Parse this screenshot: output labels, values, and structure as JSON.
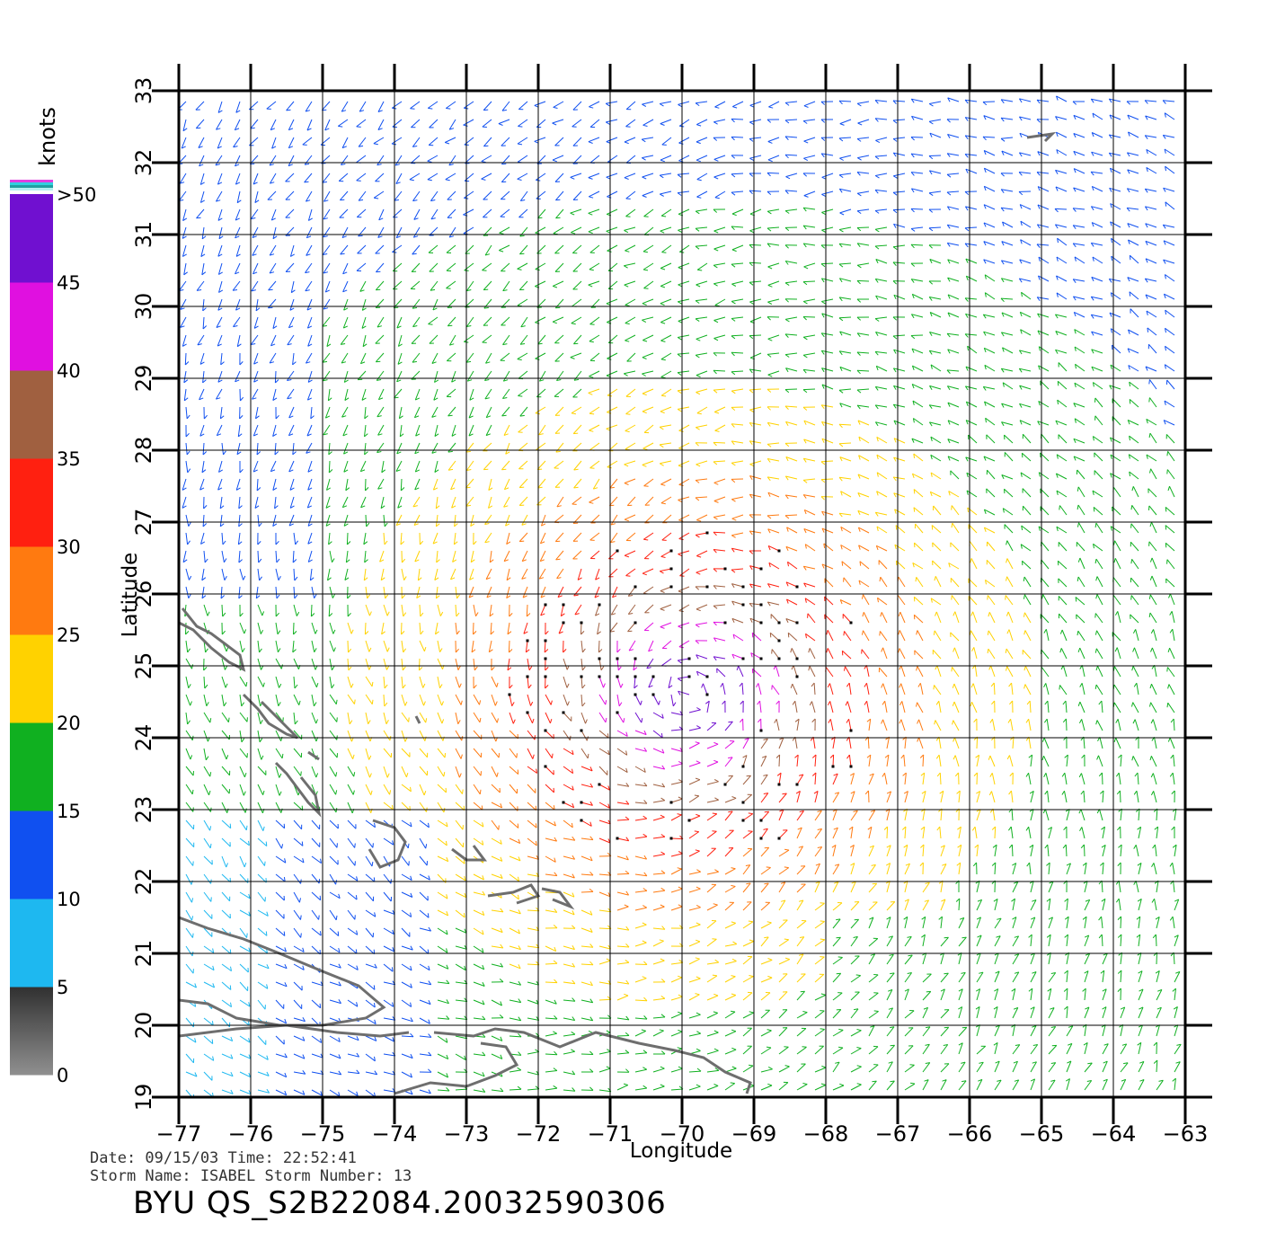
{
  "map": {
    "xlabel": "Longitude",
    "ylabel": "Latitude",
    "lon_range": [
      -77,
      -63
    ],
    "lat_range": [
      19,
      33
    ],
    "lon_ticks": [
      "−77",
      "−76",
      "−75",
      "−74",
      "−73",
      "−72",
      "−71",
      "−70",
      "−69",
      "−68",
      "−67",
      "−66",
      "−65",
      "−64",
      "−63"
    ],
    "lat_ticks": [
      "19",
      "20",
      "21",
      "22",
      "23",
      "24",
      "25",
      "26",
      "27",
      "28",
      "29",
      "30",
      "31",
      "32",
      "33"
    ]
  },
  "colorbar": {
    "unit": "knots",
    "labels": [
      "0",
      "5",
      "10",
      "15",
      "20",
      "25",
      "30",
      "35",
      "40",
      "45",
      ">50"
    ],
    "bands": [
      {
        "from": 0,
        "to": 5,
        "color": "#8a8a8a"
      },
      {
        "from": 5,
        "to": 10,
        "color": "#1eb8f0"
      },
      {
        "from": 10,
        "to": 15,
        "color": "#1050f0"
      },
      {
        "from": 15,
        "to": 20,
        "color": "#10b020"
      },
      {
        "from": 20,
        "to": 25,
        "color": "#ffd200"
      },
      {
        "from": 25,
        "to": 30,
        "color": "#ff7a10"
      },
      {
        "from": 30,
        "to": 35,
        "color": "#ff2010"
      },
      {
        "from": 35,
        "to": 40,
        "color": "#a06040"
      },
      {
        "from": 40,
        "to": 45,
        "color": "#e010e0"
      },
      {
        "from": 45,
        "to": 50,
        "color": "#7010d0"
      }
    ]
  },
  "storm": {
    "center_lon": -69.9,
    "center_lat": 24.6
  },
  "info": {
    "date_line": "Date: 09/15/03   Time: 22:52:41",
    "storm_line": "Storm  Name: ISABEL   Storm  Number: 13"
  },
  "title": "BYU  QS_S2B22084.20032590306",
  "colors": {
    "grid": "#000000",
    "coast": "#6e6e6e"
  }
}
